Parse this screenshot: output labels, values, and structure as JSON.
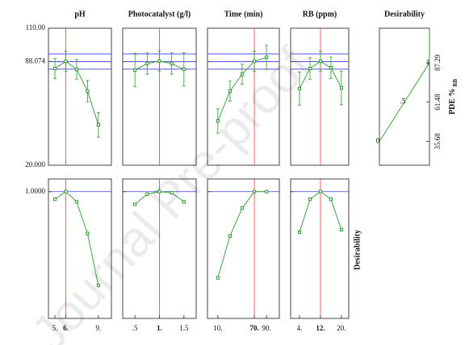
{
  "chart_data": {
    "type": "profiler",
    "watermark": "Journal Pre-proof",
    "color": "#2e9a2e",
    "reference_color": "#3a3ae0",
    "optimum_color": "#e04040",
    "response_axis": {
      "ylim": [
        20,
        110
      ],
      "yticks": [
        {
          "value": 20,
          "label": "20.000"
        },
        {
          "value": 88.074,
          "label": "88.074"
        },
        {
          "value": 110,
          "label": "110.00"
        }
      ],
      "reference": [
        83.1,
        88.074,
        93.1
      ]
    },
    "desirability_axis": {
      "title": "Desirability",
      "ylim": [
        0,
        1.1
      ],
      "yticks": [
        {
          "value": 1,
          "label": "1.0000"
        }
      ],
      "reference": [
        1
      ]
    },
    "factors": [
      {
        "title": "pH",
        "x": [
          5,
          6,
          7,
          8,
          9
        ],
        "xlim": [
          4.4,
          10.2
        ],
        "xticks": [
          {
            "value": 5,
            "label": "5."
          },
          {
            "value": 6,
            "label": "6."
          },
          {
            "value": 9,
            "label": "9."
          }
        ],
        "optimum": 6,
        "response": [
          83.5,
          88.3,
          83.0,
          68.7,
          46.5
        ],
        "errors": [
          6.5,
          6.5,
          6.5,
          7,
          8
        ],
        "desirability": [
          0.94,
          1.0,
          0.92,
          0.67,
          0.26
        ]
      },
      {
        "title": "Photocatalyst (g/l)",
        "x": [
          0.5,
          0.75,
          1,
          1.25,
          1.5
        ],
        "xlim": [
          0.25,
          1.75
        ],
        "xticks": [
          {
            "value": 0.5,
            "label": ".5"
          },
          {
            "value": 1,
            "label": "1."
          },
          {
            "value": 1.5,
            "label": "1.5"
          }
        ],
        "optimum": 1,
        "response": [
          82.5,
          86.8,
          88.4,
          86.8,
          83.0
        ],
        "errors": [
          11,
          7,
          6.5,
          7,
          11
        ],
        "desirability": [
          0.9,
          0.98,
          1.0,
          0.99,
          0.92
        ]
      },
      {
        "title": "Time (min)",
        "x": [
          10,
          30,
          50,
          70,
          90
        ],
        "xlim": [
          -7,
          111
        ],
        "xticks": [
          {
            "value": 10,
            "label": "10."
          },
          {
            "value": 70,
            "label": "70."
          },
          {
            "value": 90,
            "label": "90."
          }
        ],
        "optimum": 70,
        "response": [
          49.1,
          68.7,
          79.8,
          88.3,
          90.9
        ],
        "errors": [
          8,
          6.5,
          6.5,
          6.5,
          8
        ],
        "desirability": [
          0.32,
          0.65,
          0.87,
          1.0,
          1.0
        ]
      },
      {
        "title": "RB (ppm)",
        "x": [
          4,
          8,
          12,
          16,
          20
        ],
        "xlim": [
          0.6,
          22.8
        ],
        "xticks": [
          {
            "value": 4,
            "label": "4."
          },
          {
            "value": 12,
            "label": "12."
          },
          {
            "value": 20,
            "label": "20."
          }
        ],
        "optimum": 12,
        "response": [
          70.3,
          83.5,
          88.3,
          84.0,
          70.8
        ],
        "errors": [
          11,
          7,
          6.5,
          7,
          11
        ],
        "desirability": [
          0.68,
          0.94,
          1.0,
          0.94,
          0.7
        ]
      }
    ],
    "desirability_function": {
      "title": "Desirability",
      "x": [
        0,
        0.5,
        1,
        1
      ],
      "y": [
        35.68,
        61.48,
        87.29,
        110
      ],
      "point_labels": [
        "0",
        ".5",
        "1",
        null
      ],
      "xlim": [
        0,
        1
      ],
      "ylim": [
        20,
        110
      ],
      "yticks": [
        35.68,
        61.48,
        87.29
      ],
      "y_label": "PDE %",
      "y_label_sub": "RB"
    }
  }
}
